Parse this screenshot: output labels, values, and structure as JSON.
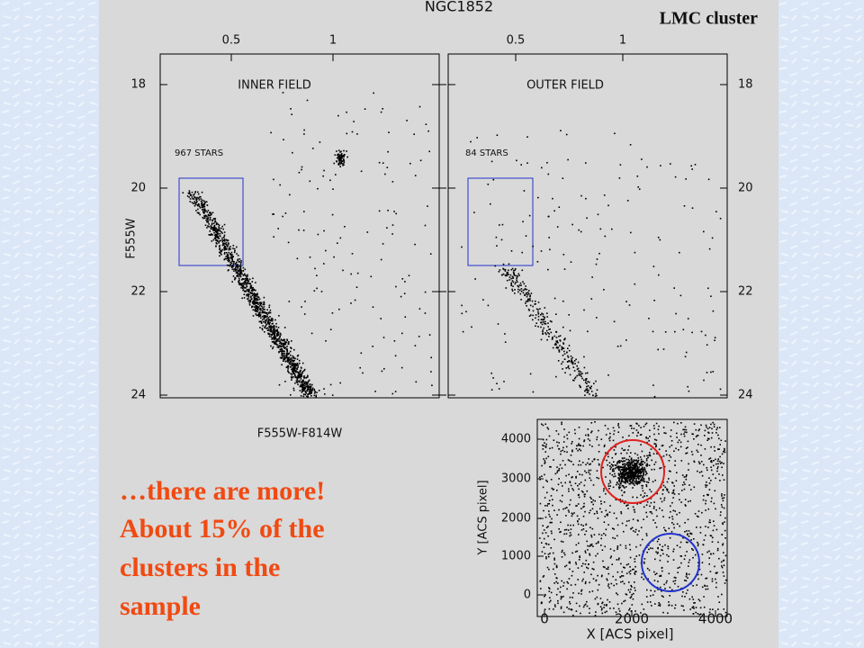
{
  "slide": {
    "tag": "LMC cluster",
    "text_lines": [
      "…there are more!",
      "About 15% of the",
      "clusters in the",
      "sample"
    ]
  },
  "cmd": {
    "title": "NGC1852",
    "top_ticks": [
      "0.5",
      "1"
    ],
    "y_ticks": [
      "18",
      "20",
      "22",
      "24"
    ],
    "y_label": "F555W",
    "x_label": "F555W-F814W",
    "panels": [
      {
        "label": "INNER FIELD",
        "count": "967 STARS"
      },
      {
        "label": "OUTER FIELD",
        "count": "84 STARS"
      }
    ]
  },
  "map": {
    "x_ticks": [
      "0",
      "2000",
      "4000"
    ],
    "y_ticks": [
      "4000",
      "3000",
      "2000",
      "1000",
      "0"
    ],
    "x_label": "X [ACS pixel]",
    "y_label": "Y [ACS pixel]"
  }
}
